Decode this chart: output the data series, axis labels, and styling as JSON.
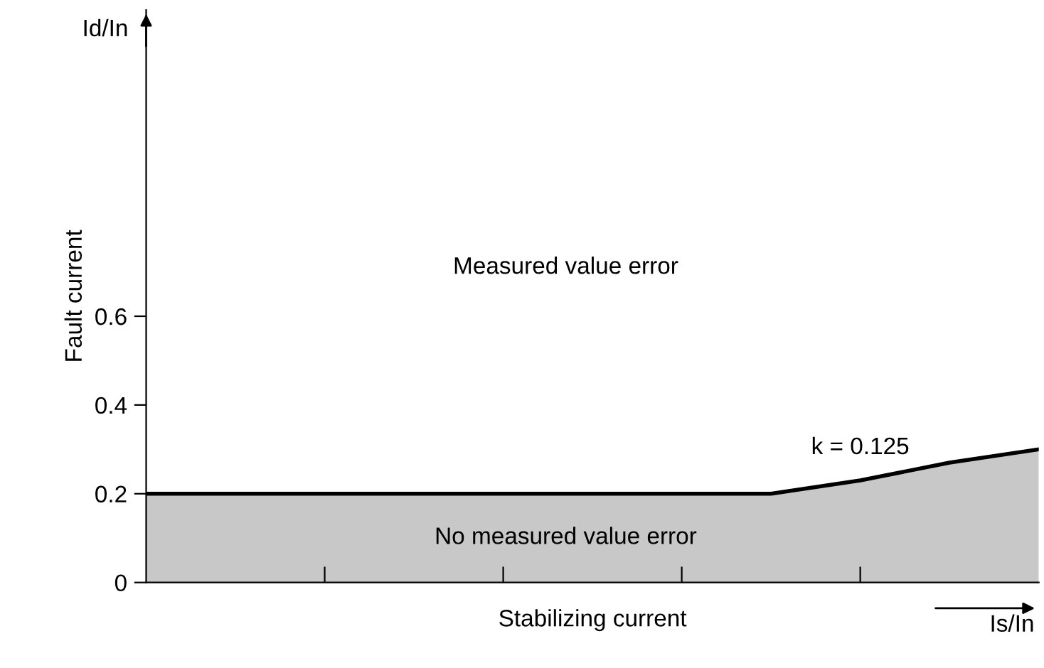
{
  "chart_data": {
    "type": "area",
    "xlabel": "Stabilizing current",
    "ylabel": "Fault current",
    "categories": [
      null,
      null,
      null,
      null,
      null,
      null,
      null,
      null,
      null,
      null,
      null
    ],
    "series": [
      {
        "color": "#c8c8c8",
        "values": [
          0.2,
          0.2,
          0.2,
          0.2,
          0.2,
          0.2,
          0.2,
          0.2,
          0.23,
          0.27,
          0.3
        ]
      }
    ],
    "ylim": [
      0,
      1.29
    ],
    "yticks": [
      0,
      0.2,
      0.4,
      0.6
    ],
    "grid": false,
    "legend": false,
    "annotations": [
      "Id/In",
      "Is/In",
      "Measured value error",
      "No measured value error",
      "k = 0.125"
    ]
  }
}
